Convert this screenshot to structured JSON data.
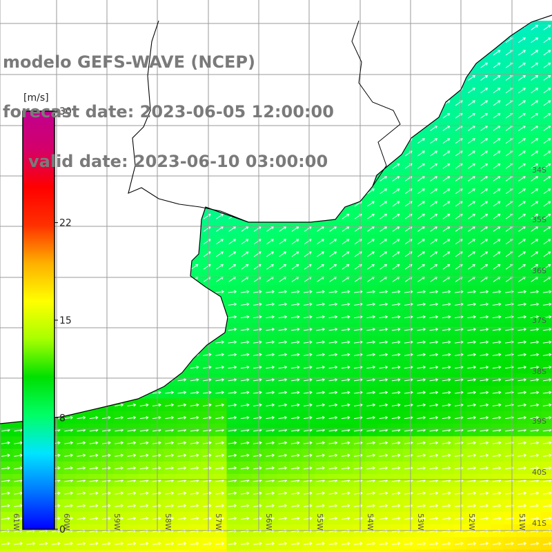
{
  "title": {
    "line1": "modelo GEFS-WAVE (NCEP)",
    "line2": "forecast date: 2023-06-05 12:00:00",
    "line3": "valid date: 2023-06-10 03:00:00"
  },
  "colorbar": {
    "unit": "[m/s]",
    "ticks": [
      "30",
      "22",
      "15",
      "8",
      "0"
    ],
    "tick_values": [
      30,
      22,
      15,
      8,
      0
    ],
    "min": 0,
    "max": 30,
    "colors": [
      "#0000ff",
      "#0077ff",
      "#00e5ff",
      "#00ff66",
      "#00e000",
      "#a8ff00",
      "#ffff00",
      "#ffb000",
      "#ff3000",
      "#ff0000",
      "#d4006a",
      "#c00090"
    ]
  },
  "lat_labels": [
    "34S",
    "35S",
    "36S",
    "37S",
    "38S",
    "39S",
    "40S",
    "41S"
  ],
  "lon_labels": [
    "61W",
    "60W",
    "59W",
    "58W",
    "57W",
    "56W",
    "55W",
    "54W",
    "53W",
    "52W",
    "51W"
  ],
  "map": {
    "land_color": "#ffffff",
    "grid_color": "#9a9a9a",
    "coast_color": "#000000",
    "arrow_color": "#ffffff",
    "field": "wind speed [m/s]",
    "wind_direction": "from west/southwest, arrows pointing east-northeast"
  }
}
